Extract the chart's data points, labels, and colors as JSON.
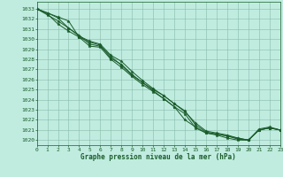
{
  "title": "Graphe pression niveau de la mer (hPa)",
  "bg_color": "#c0ece0",
  "grid_color": "#88bbaa",
  "line_color": "#1a5c2a",
  "xlim": [
    0,
    23
  ],
  "ylim": [
    1019.5,
    1033.7
  ],
  "xticks": [
    0,
    1,
    2,
    3,
    4,
    5,
    6,
    7,
    8,
    9,
    10,
    11,
    12,
    13,
    14,
    15,
    16,
    17,
    18,
    19,
    20,
    21,
    22,
    23
  ],
  "yticks": [
    1020,
    1021,
    1022,
    1023,
    1024,
    1025,
    1026,
    1027,
    1028,
    1029,
    1030,
    1031,
    1032,
    1033
  ],
  "series": [
    [
      1033.0,
      1032.6,
      1032.2,
      1031.8,
      1030.2,
      1029.7,
      1029.4,
      1028.1,
      1027.5,
      1026.5,
      1025.7,
      1024.9,
      1024.1,
      1023.3,
      1022.0,
      1021.3,
      1020.7,
      1020.6,
      1020.4,
      1020.2,
      1020.0,
      1021.0,
      1021.2,
      1021.0
    ],
    [
      1033.0,
      1032.6,
      1032.1,
      1031.1,
      1030.3,
      1029.8,
      1029.5,
      1028.4,
      1027.8,
      1026.8,
      1025.9,
      1025.1,
      1024.4,
      1023.6,
      1022.9,
      1021.5,
      1020.8,
      1020.6,
      1020.4,
      1020.1,
      1020.0,
      1021.1,
      1021.3,
      1021.0
    ],
    [
      1033.0,
      1032.4,
      1031.8,
      1031.1,
      1030.4,
      1029.5,
      1029.3,
      1028.3,
      1027.4,
      1026.4,
      1025.7,
      1025.0,
      1024.4,
      1023.6,
      1022.8,
      1021.7,
      1020.9,
      1020.7,
      1020.5,
      1020.2,
      1020.0,
      1021.0,
      1021.2,
      1021.0
    ],
    [
      1033.0,
      1032.5,
      1031.5,
      1030.8,
      1030.2,
      1029.3,
      1029.2,
      1028.0,
      1027.2,
      1026.3,
      1025.5,
      1024.8,
      1024.1,
      1023.3,
      1022.6,
      1021.2,
      1020.7,
      1020.5,
      1020.2,
      1020.0,
      1020.0,
      1021.0,
      1021.2,
      1021.0
    ]
  ]
}
